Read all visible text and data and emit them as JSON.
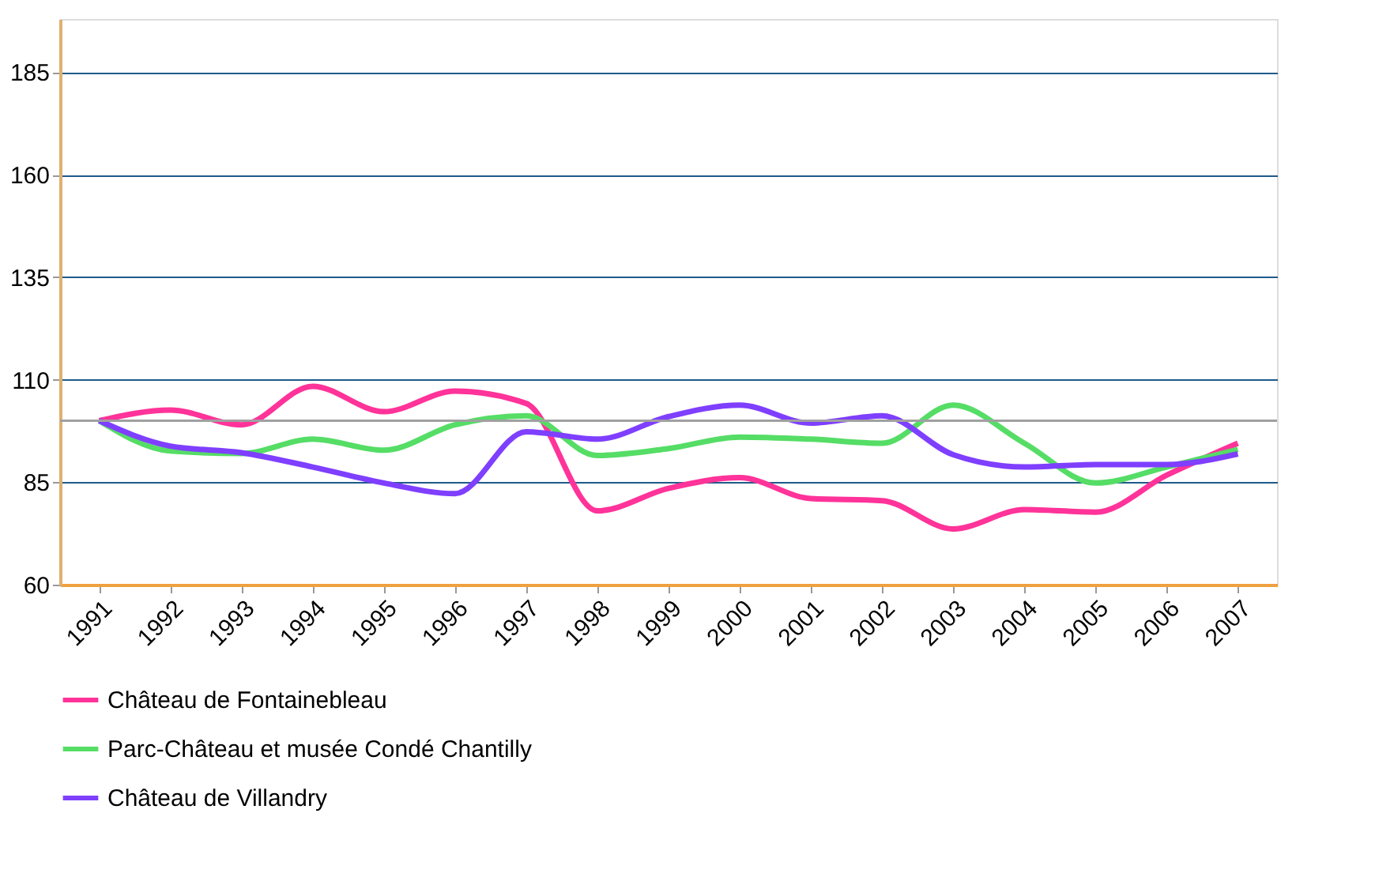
{
  "chart_data": {
    "type": "line",
    "categories": [
      "1991",
      "1992",
      "1993",
      "1994",
      "1995",
      "1996",
      "1997",
      "1998",
      "1999",
      "2000",
      "2001",
      "2002",
      "2003",
      "2004",
      "2005",
      "2006",
      "2007"
    ],
    "series": [
      {
        "name": "Château de Fontainebleau",
        "color": "#ff3399",
        "values": [
          100,
          102.6,
          99,
          108.4,
          102.2,
          107.2,
          104.2,
          78,
          83.5,
          86.1,
          81,
          80.5,
          73.6,
          78.3,
          77.7,
          86.7,
          94.5
        ]
      },
      {
        "name": "Parc-Château et musée Condé Chantilly",
        "color": "#55dd66",
        "values": [
          100,
          92.6,
          92,
          95.5,
          92.8,
          99,
          101.2,
          91.5,
          93.2,
          96,
          95.5,
          94.5,
          103.8,
          94.5,
          84.8,
          88.7,
          93
        ]
      },
      {
        "name": "Château de Villandry",
        "color": "#7f3fff",
        "values": [
          100,
          93.8,
          92.2,
          88.7,
          84.8,
          82.2,
          97.3,
          95.5,
          101,
          103.8,
          99.4,
          101.2,
          91.7,
          88.7,
          89.3,
          89.3,
          91.9
        ]
      }
    ],
    "ylim": [
      60,
      198
    ],
    "yticks": [
      60,
      85,
      110,
      135,
      160,
      185
    ],
    "grid": "y",
    "legend": "bottom",
    "marker": "none",
    "line_style": "solid",
    "ref_lines": [
      {
        "axis": "y",
        "value": 100,
        "color": "#a0a0a0"
      }
    ]
  }
}
